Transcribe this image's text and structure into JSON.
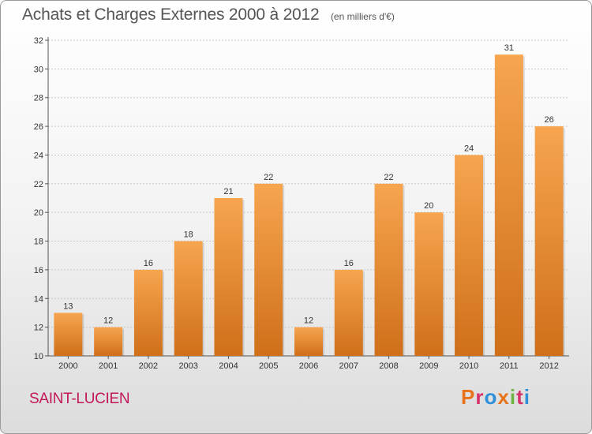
{
  "header": {
    "title": "Achats et Charges Externes 2000 à 2012",
    "unit": "(en milliers d'€)"
  },
  "footer": {
    "city": "SAINT-LUCIEN",
    "logo": "Proxiti",
    "logo_colors": [
      "#e8731a",
      "#d6336c",
      "#2f8fd8",
      "#e8731a",
      "#6cb33f",
      "#d6336c",
      "#2f8fd8"
    ]
  },
  "colors": {
    "bar_top": "#f7a54f",
    "bar_bottom": "#cf6f1a",
    "grid": "#c8c8c8",
    "axis": "#555555"
  },
  "chart_data": {
    "type": "bar",
    "title": "Achats et Charges Externes 2000 à 2012",
    "subtitle": "(en milliers d'€)",
    "categories": [
      "2000",
      "2001",
      "2002",
      "2003",
      "2004",
      "2005",
      "2006",
      "2007",
      "2008",
      "2009",
      "2010",
      "2011",
      "2012"
    ],
    "values": [
      13,
      12,
      16,
      18,
      21,
      22,
      12,
      16,
      22,
      20,
      24,
      31,
      26
    ],
    "ylim": [
      10,
      32
    ],
    "yticks": [
      10,
      12,
      14,
      16,
      18,
      20,
      22,
      24,
      26,
      28,
      30,
      32
    ],
    "grid": true,
    "xlabel": "",
    "ylabel": ""
  }
}
